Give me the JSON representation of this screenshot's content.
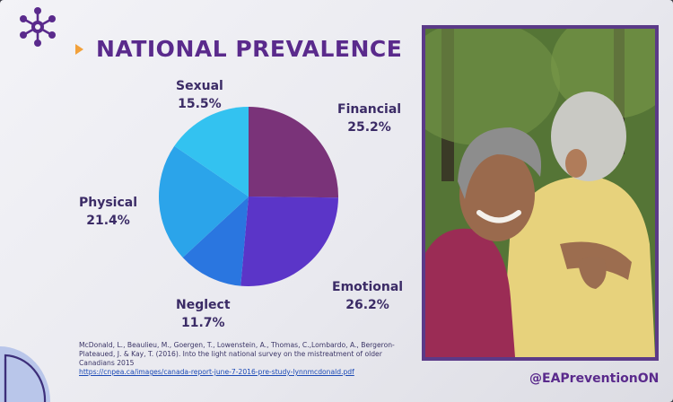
{
  "slide": {
    "title": "NATIONAL PREVALENCE",
    "handle": "@EAPreventionON",
    "accent_color": "#f2a13a",
    "title_color": "#5a2a8c",
    "logo_icon": "molecule-network-icon",
    "photo": "elderly-couple-hugging-photo"
  },
  "citation": {
    "text": "McDonald, L., Beaulieu, M., Goergen, T., Lowenstein, A., Thomas, C.,Lombardo, A., Bergeron-Plateaued, J. & Kay, T. (2016). Into the light national survey on the mistreatment of older Canadians 2015",
    "link": "https://cnpea.ca/images/canada-report-june-7-2016-pre-study-lynnmcdonald.pdf"
  },
  "chart_data": {
    "type": "pie",
    "title": "",
    "slices": [
      {
        "label": "Financial",
        "value": 25.2,
        "display": "25.2%",
        "color": "#7a3379"
      },
      {
        "label": "Emotional",
        "value": 26.2,
        "display": "26.2%",
        "color": "#5b35c8"
      },
      {
        "label": "Neglect",
        "value": 11.7,
        "display": "11.7%",
        "color": "#2a76e0"
      },
      {
        "label": "Physical",
        "value": 21.4,
        "display": "21.4%",
        "color": "#2ba4ea"
      },
      {
        "label": "Sexual",
        "value": 15.5,
        "display": "15.5%",
        "color": "#33c2f0"
      }
    ]
  }
}
